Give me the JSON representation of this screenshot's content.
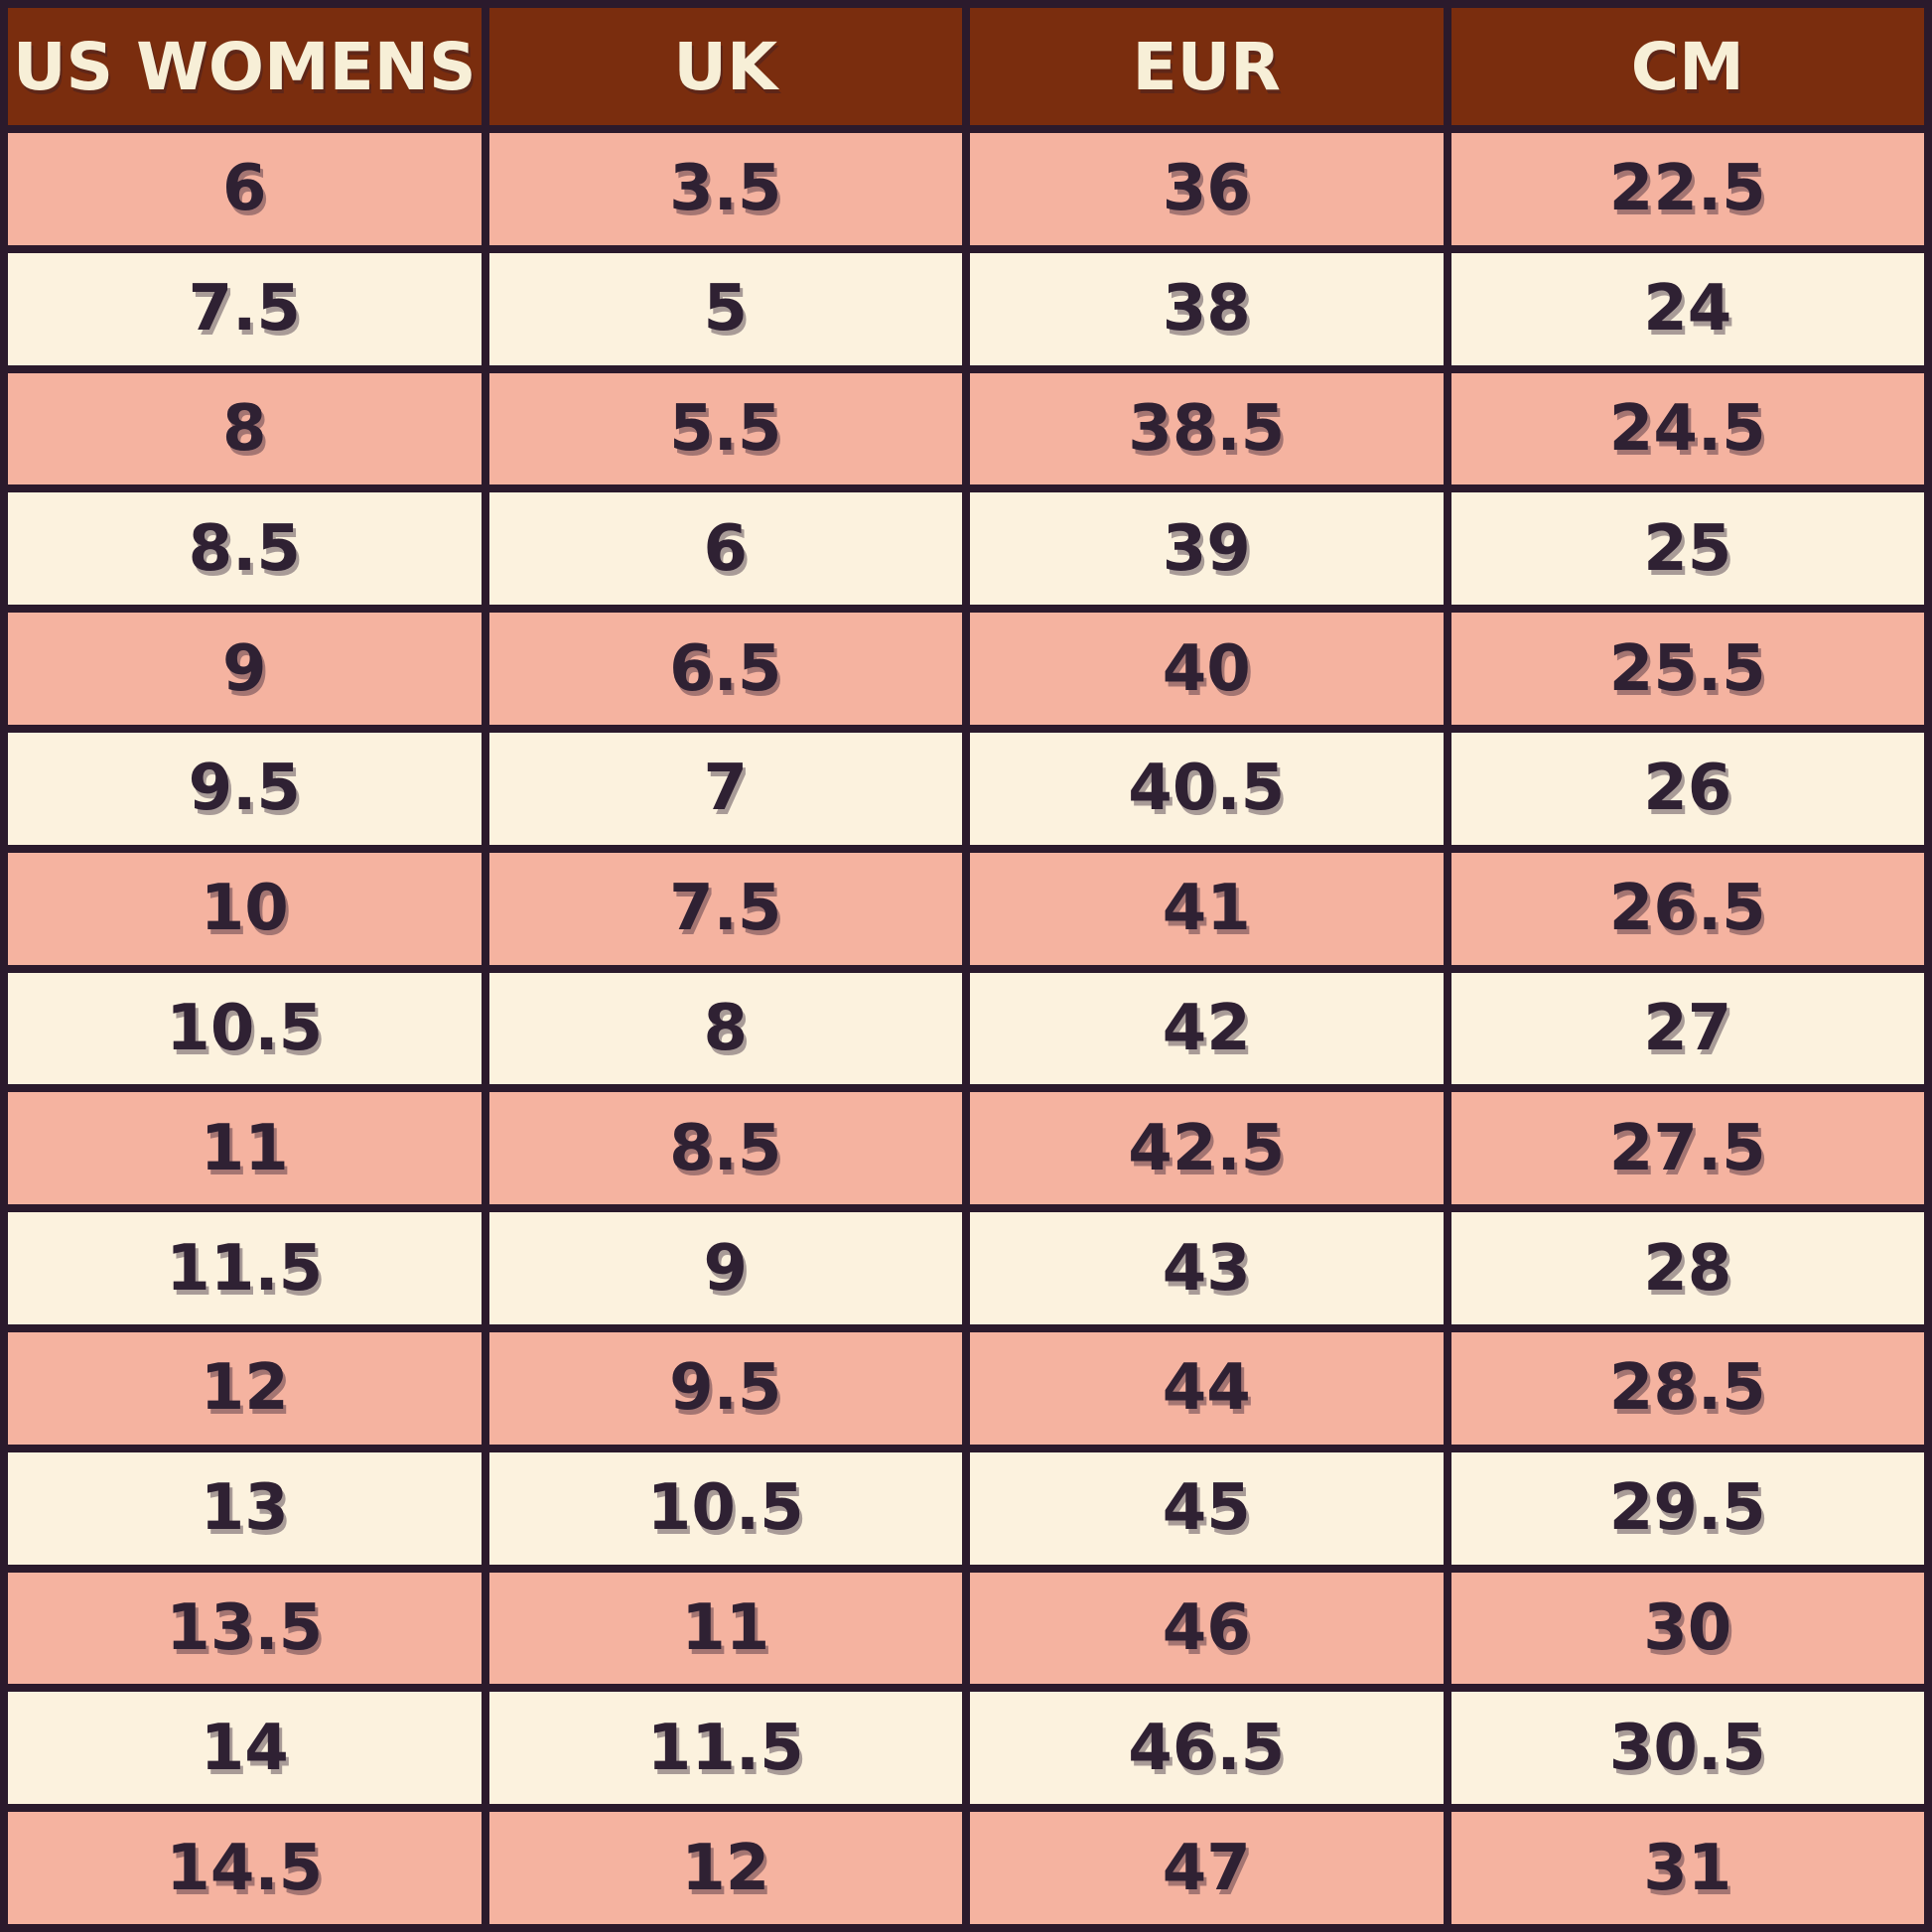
{
  "colors": {
    "header_bg": "#7A2D0E",
    "header_text": "#F7EFD7",
    "row_pink": "#F5B3A0",
    "row_cream": "#FCF2DE",
    "grid_line": "#2B1A2C",
    "cell_text": "#2F2133"
  },
  "chart_data": {
    "type": "table",
    "title": "",
    "columns": [
      "US WOMENS",
      "UK",
      "EUR",
      "CM"
    ],
    "rows": [
      [
        "6",
        "3.5",
        "36",
        "22.5"
      ],
      [
        "7.5",
        "5",
        "38",
        "24"
      ],
      [
        "8",
        "5.5",
        "38.5",
        "24.5"
      ],
      [
        "8.5",
        "6",
        "39",
        "25"
      ],
      [
        "9",
        "6.5",
        "40",
        "25.5"
      ],
      [
        "9.5",
        "7",
        "40.5",
        "26"
      ],
      [
        "10",
        "7.5",
        "41",
        "26.5"
      ],
      [
        "10.5",
        "8",
        "42",
        "27"
      ],
      [
        "11",
        "8.5",
        "42.5",
        "27.5"
      ],
      [
        "11.5",
        "9",
        "43",
        "28"
      ],
      [
        "12",
        "9.5",
        "44",
        "28.5"
      ],
      [
        "13",
        "10.5",
        "45",
        "29.5"
      ],
      [
        "13.5",
        "11",
        "46",
        "30"
      ],
      [
        "14",
        "11.5",
        "46.5",
        "30.5"
      ],
      [
        "14.5",
        "12",
        "47",
        "31"
      ]
    ],
    "layout_hints": {
      "striped_rows": "odd rows pink, even rows cream",
      "header_style": "dark brown background, cream bold uppercase text",
      "grid": "thick dark purple-black lines, 4 equal columns"
    }
  }
}
